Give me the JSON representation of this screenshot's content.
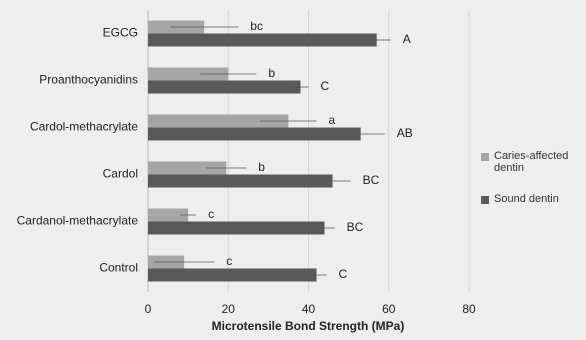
{
  "chart_data": {
    "type": "barh",
    "xlabel": "Microtensile Bond Strength (MPa)",
    "categories": [
      "EGCG",
      "Proanthocyanidins",
      "Cardol-methacrylate",
      "Cardol",
      "Cardanol-methacrylate",
      "Control"
    ],
    "series": [
      {
        "name": "Caries-affected dentin",
        "color": "#a6a6a6",
        "values": [
          14,
          20,
          35,
          19.5,
          10,
          9
        ],
        "errors": [
          8.5,
          7,
          7,
          5,
          2,
          7.5
        ],
        "labels": [
          "bc",
          "b",
          "a",
          "b",
          "c",
          "c"
        ]
      },
      {
        "name": "Sound dentin",
        "color": "#595959",
        "values": [
          57,
          38,
          53,
          46,
          44,
          42
        ],
        "errors": [
          3.5,
          2,
          6,
          4.5,
          2.5,
          2.5
        ],
        "labels": [
          "A",
          "C",
          "AB",
          "BC",
          "BC",
          "C"
        ]
      }
    ],
    "xlim": [
      0,
      80
    ],
    "xticks": [
      0,
      20,
      40,
      60,
      80
    ],
    "grid": true,
    "legend": "right"
  }
}
